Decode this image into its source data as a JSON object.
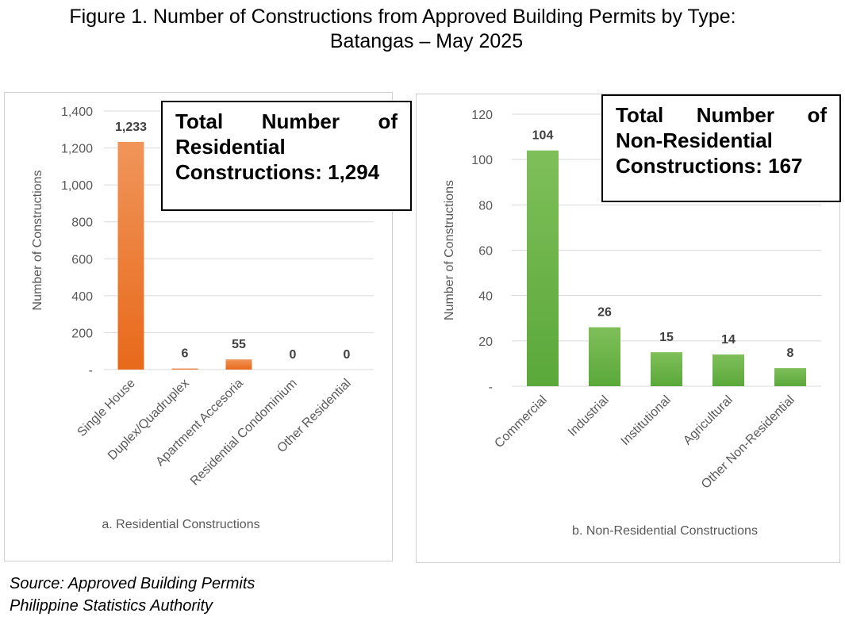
{
  "figure_title_line1": "Figure 1.  Number of Constructions from Approved Building Permits by Type:",
  "figure_title_line2": "Batangas – May 2025",
  "source_line1": "Source: Approved Building Permits",
  "source_line2": "Philippine Statistics Authority",
  "residential_callout": {
    "line1": "Total Number of",
    "line2": "Residential",
    "line3": "Constructions: 1,294"
  },
  "nonresidential_callout": {
    "line1": "Total Number of",
    "line2": "Non-Residential",
    "line3": "Constructions: 167"
  },
  "chart_data": [
    {
      "type": "bar",
      "title": "",
      "caption": "a. Residential Constructions",
      "ylabel": "Number of Constructions",
      "xlabel": "",
      "categories": [
        "Single House",
        "Duplex/Quadruplex",
        "Apartment Accesoria",
        "Residential Condominium",
        "Other Residential"
      ],
      "values": [
        1233,
        6,
        55,
        0,
        0
      ],
      "value_labels": [
        "1,233",
        "6",
        "55",
        "0",
        "0"
      ],
      "yticks": [
        "-",
        "200",
        "400",
        "600",
        "800",
        "1,000",
        "1,200",
        "1,400"
      ],
      "ylim": [
        0,
        1400
      ],
      "grid": true,
      "bar_color_top": "#f0955a",
      "bar_color_bottom": "#e8691a"
    },
    {
      "type": "bar",
      "title": "",
      "caption": "b. Non-Residential Constructions",
      "ylabel": "Number of Constructions",
      "xlabel": "",
      "categories": [
        "Commercial",
        "Industrial",
        "Institutional",
        "Agricultural",
        "Other Non-Residential"
      ],
      "values": [
        104,
        26,
        15,
        14,
        8
      ],
      "value_labels": [
        "104",
        "26",
        "15",
        "14",
        "8"
      ],
      "yticks": [
        "-",
        "20",
        "40",
        "60",
        "80",
        "100",
        "120"
      ],
      "ylim": [
        0,
        120
      ],
      "grid": true,
      "bar_color_top": "#7fbf5a",
      "bar_color_bottom": "#5aa83a"
    }
  ]
}
